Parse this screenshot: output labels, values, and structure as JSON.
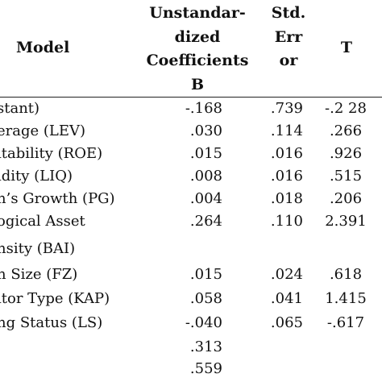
{
  "table": {
    "headers": {
      "model": "Model",
      "unstd_line1": "Unstandar-",
      "unstd_line2": "dized",
      "unstd_line3": "Coefficients",
      "unstd_line4": "B",
      "se_line1": "Std.",
      "se_line2": "Err",
      "se_line3": "or",
      "t": "T"
    },
    "rows": [
      {
        "label": "stant)",
        "b": "-.168",
        "se": ".739",
        "t": "-.2 28"
      },
      {
        "label": "erage (LEV)",
        "b": ".030",
        "se": ".114",
        "t": ".266"
      },
      {
        "label": "itability (ROE)",
        "b": ".015",
        "se": ".016",
        "t": ".926"
      },
      {
        "label": "idity (LIQ)",
        "b": ".008",
        "se": ".016",
        "t": ".515"
      },
      {
        "label": "n’s Growth (PG)",
        "b": ".004",
        "se": ".018",
        "t": ".206"
      },
      {
        "label": "ogical Asset",
        "b": ".264",
        "se": ".110",
        "t": "2.391"
      },
      {
        "label": "nsity (BAI)",
        "b": "",
        "se": "",
        "t": ""
      },
      {
        "label": "n Size (FZ)",
        "b": ".015",
        "se": ".024",
        "t": ".618"
      },
      {
        "label": "itor Type (KAP)",
        "b": ".058",
        "se": ".041",
        "t": "1.415"
      },
      {
        "label": "ng Status (LS)",
        "b": "-.040",
        "se": ".065",
        "t": "-.617"
      },
      {
        "label": "",
        "b": ".313",
        "se": "",
        "t": ""
      },
      {
        "label": "",
        "b": ".559",
        "se": "",
        "t": ""
      }
    ]
  }
}
